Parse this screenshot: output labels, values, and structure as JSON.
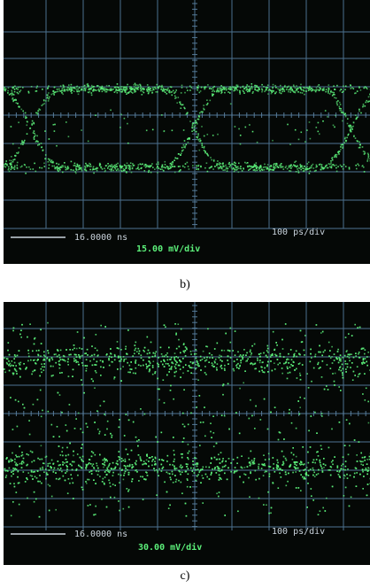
{
  "panels": [
    {
      "timebase": "16.0000 ns",
      "time_per_div": "100  ps/div",
      "volts_per_div": "15.00 mV/div",
      "trace_color": "#5cf07a",
      "pattern": "open-eye",
      "caption": "b)"
    },
    {
      "timebase": "16.0000 ns",
      "time_per_div": "100  ps/div",
      "volts_per_div": "30.00 mV/div",
      "trace_color": "#5cf07a",
      "pattern": "closed-eye",
      "caption": "c)"
    }
  ]
}
